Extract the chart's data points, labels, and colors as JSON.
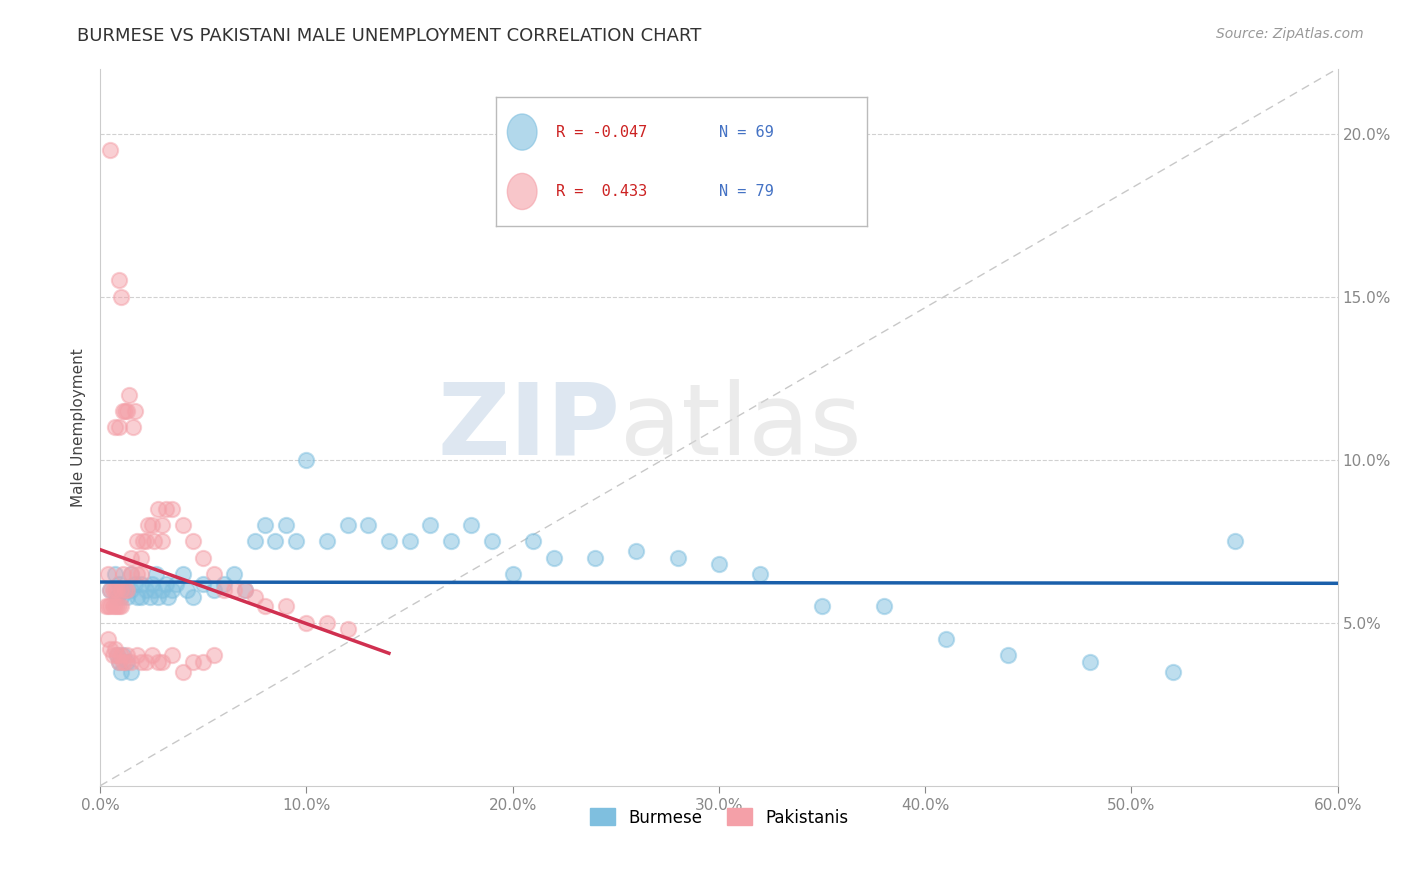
{
  "title": "BURMESE VS PAKISTANI MALE UNEMPLOYMENT CORRELATION CHART",
  "source": "Source: ZipAtlas.com",
  "ylabel": "Male Unemployment",
  "xlim": [
    0.0,
    0.6
  ],
  "ylim": [
    0.0,
    0.22
  ],
  "x_ticks": [
    0.0,
    0.1,
    0.2,
    0.3,
    0.4,
    0.5,
    0.6
  ],
  "x_tick_labels": [
    "0.0%",
    "10.0%",
    "20.0%",
    "30.0%",
    "40.0%",
    "50.0%",
    "60.0%"
  ],
  "y_ticks": [
    0.05,
    0.1,
    0.15,
    0.2
  ],
  "y_tick_labels": [
    "5.0%",
    "10.0%",
    "15.0%",
    "20.0%"
  ],
  "burmese_color": "#7fbfdf",
  "pakistani_color": "#f4a0a8",
  "burmese_R": -0.047,
  "burmese_N": 69,
  "pakistani_R": 0.433,
  "pakistani_N": 79,
  "legend_burmese": "Burmese",
  "legend_pakistani": "Pakistanis",
  "burmese_trend_color": "#1a5faa",
  "pakistani_trend_color": "#d03050",
  "watermark_zip": "ZIP",
  "watermark_atlas": "atlas",
  "background_color": "#ffffff",
  "grid_color": "#cccccc",
  "burmese_x": [
    0.005,
    0.007,
    0.008,
    0.009,
    0.01,
    0.01,
    0.012,
    0.013,
    0.015,
    0.015,
    0.017,
    0.018,
    0.02,
    0.02,
    0.022,
    0.024,
    0.025,
    0.026,
    0.027,
    0.028,
    0.03,
    0.032,
    0.033,
    0.035,
    0.037,
    0.04,
    0.042,
    0.045,
    0.05,
    0.055,
    0.06,
    0.065,
    0.07,
    0.075,
    0.08,
    0.085,
    0.09,
    0.095,
    0.1,
    0.11,
    0.12,
    0.13,
    0.14,
    0.15,
    0.16,
    0.17,
    0.18,
    0.19,
    0.2,
    0.21,
    0.22,
    0.24,
    0.26,
    0.28,
    0.3,
    0.32,
    0.35,
    0.38,
    0.41,
    0.44,
    0.48,
    0.52,
    0.008,
    0.009,
    0.01,
    0.011,
    0.013,
    0.015,
    0.55
  ],
  "burmese_y": [
    0.06,
    0.065,
    0.058,
    0.062,
    0.058,
    0.06,
    0.06,
    0.058,
    0.06,
    0.065,
    0.062,
    0.058,
    0.062,
    0.058,
    0.06,
    0.058,
    0.062,
    0.06,
    0.065,
    0.058,
    0.06,
    0.062,
    0.058,
    0.06,
    0.062,
    0.065,
    0.06,
    0.058,
    0.062,
    0.06,
    0.062,
    0.065,
    0.06,
    0.075,
    0.08,
    0.075,
    0.08,
    0.075,
    0.1,
    0.075,
    0.08,
    0.08,
    0.075,
    0.075,
    0.08,
    0.075,
    0.08,
    0.075,
    0.065,
    0.075,
    0.07,
    0.07,
    0.072,
    0.07,
    0.068,
    0.065,
    0.055,
    0.055,
    0.045,
    0.04,
    0.038,
    0.035,
    0.04,
    0.038,
    0.035,
    0.04,
    0.038,
    0.035,
    0.075
  ],
  "pakistani_x": [
    0.003,
    0.004,
    0.004,
    0.005,
    0.005,
    0.005,
    0.006,
    0.006,
    0.007,
    0.007,
    0.007,
    0.008,
    0.008,
    0.009,
    0.009,
    0.009,
    0.01,
    0.01,
    0.01,
    0.011,
    0.011,
    0.012,
    0.012,
    0.013,
    0.013,
    0.014,
    0.015,
    0.015,
    0.016,
    0.017,
    0.018,
    0.018,
    0.02,
    0.02,
    0.021,
    0.022,
    0.023,
    0.025,
    0.026,
    0.028,
    0.03,
    0.03,
    0.032,
    0.035,
    0.04,
    0.045,
    0.05,
    0.055,
    0.06,
    0.065,
    0.07,
    0.075,
    0.08,
    0.09,
    0.1,
    0.11,
    0.12,
    0.004,
    0.005,
    0.006,
    0.007,
    0.008,
    0.009,
    0.01,
    0.011,
    0.012,
    0.013,
    0.015,
    0.018,
    0.02,
    0.022,
    0.025,
    0.028,
    0.03,
    0.035,
    0.04,
    0.045,
    0.05,
    0.055
  ],
  "pakistani_y": [
    0.055,
    0.055,
    0.065,
    0.055,
    0.06,
    0.195,
    0.055,
    0.06,
    0.055,
    0.06,
    0.11,
    0.055,
    0.06,
    0.055,
    0.11,
    0.155,
    0.055,
    0.06,
    0.15,
    0.065,
    0.115,
    0.06,
    0.115,
    0.06,
    0.115,
    0.12,
    0.065,
    0.07,
    0.11,
    0.115,
    0.065,
    0.075,
    0.065,
    0.07,
    0.075,
    0.075,
    0.08,
    0.08,
    0.075,
    0.085,
    0.075,
    0.08,
    0.085,
    0.085,
    0.08,
    0.075,
    0.07,
    0.065,
    0.06,
    0.06,
    0.06,
    0.058,
    0.055,
    0.055,
    0.05,
    0.05,
    0.048,
    0.045,
    0.042,
    0.04,
    0.042,
    0.04,
    0.038,
    0.04,
    0.038,
    0.038,
    0.04,
    0.038,
    0.04,
    0.038,
    0.038,
    0.04,
    0.038,
    0.038,
    0.04,
    0.035,
    0.038,
    0.038,
    0.04
  ]
}
